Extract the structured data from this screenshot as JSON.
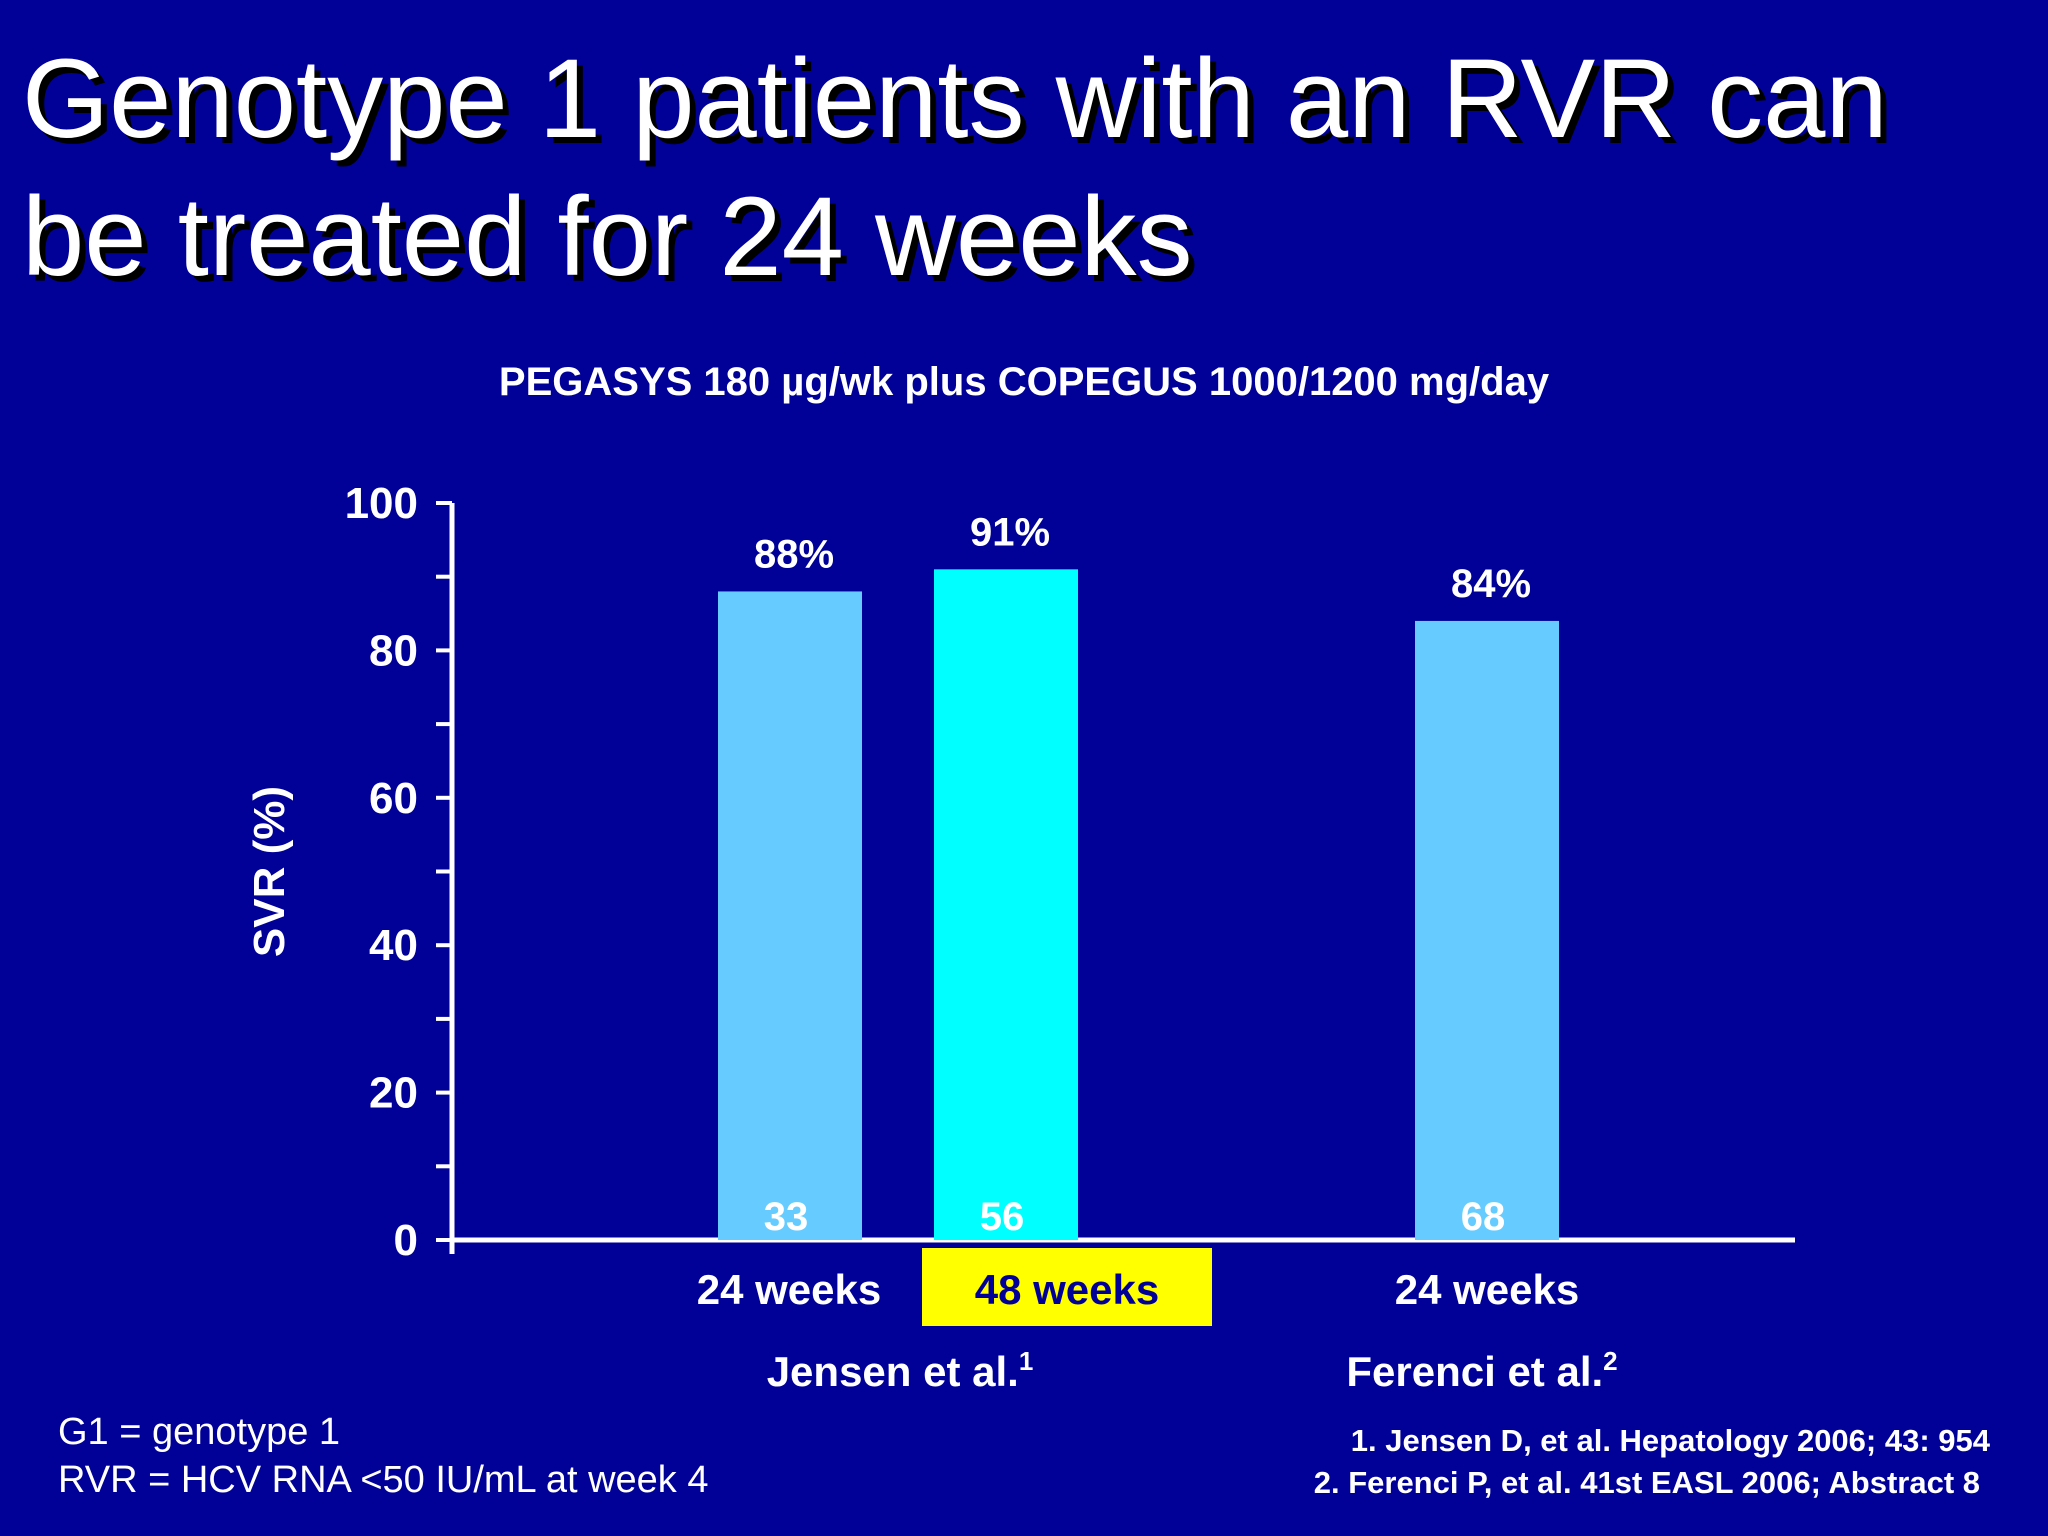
{
  "slide": {
    "title_line1": "Genotype 1 patients with an RVR can",
    "title_line2": "be treated for 24 weeks",
    "footnotes": [
      "G1 = genotype 1",
      "RVR = HCV RNA <50 IU/mL at week 4"
    ],
    "references": [
      "1. Jensen D, et al. Hepatology 2006; 43: 954",
      "2. Ferenci P, et al. 41st EASL 2006; Abstract 8"
    ]
  },
  "chart_data": {
    "type": "bar",
    "title": "PEGASYS 180 µg/wk plus COPEGUS 1000/1200 mg/day",
    "ylabel": "SVR (%)",
    "ylim": [
      0,
      100
    ],
    "yticks": [
      0,
      20,
      40,
      60,
      80,
      100
    ],
    "categories": [
      "24 weeks",
      "48 weeks",
      "24 weeks"
    ],
    "values": [
      88,
      91,
      84
    ],
    "value_labels": [
      "88%",
      "91%",
      "84%"
    ],
    "n_labels": [
      "33",
      "56",
      "68"
    ],
    "groups": [
      {
        "name": "Jensen et al.",
        "superscript": "1",
        "bars": [
          0,
          1
        ]
      },
      {
        "name": "Ferenci et al.",
        "superscript": "2",
        "bars": [
          2
        ]
      }
    ],
    "colors": {
      "background": "#010197",
      "bar_24_weeks": "#66ccff",
      "bar_48_weeks": "#00ffff",
      "highlight_label_bg": "#ffff00",
      "highlight_label_text": "#010197",
      "text": "#ffffff"
    },
    "grid": false
  }
}
